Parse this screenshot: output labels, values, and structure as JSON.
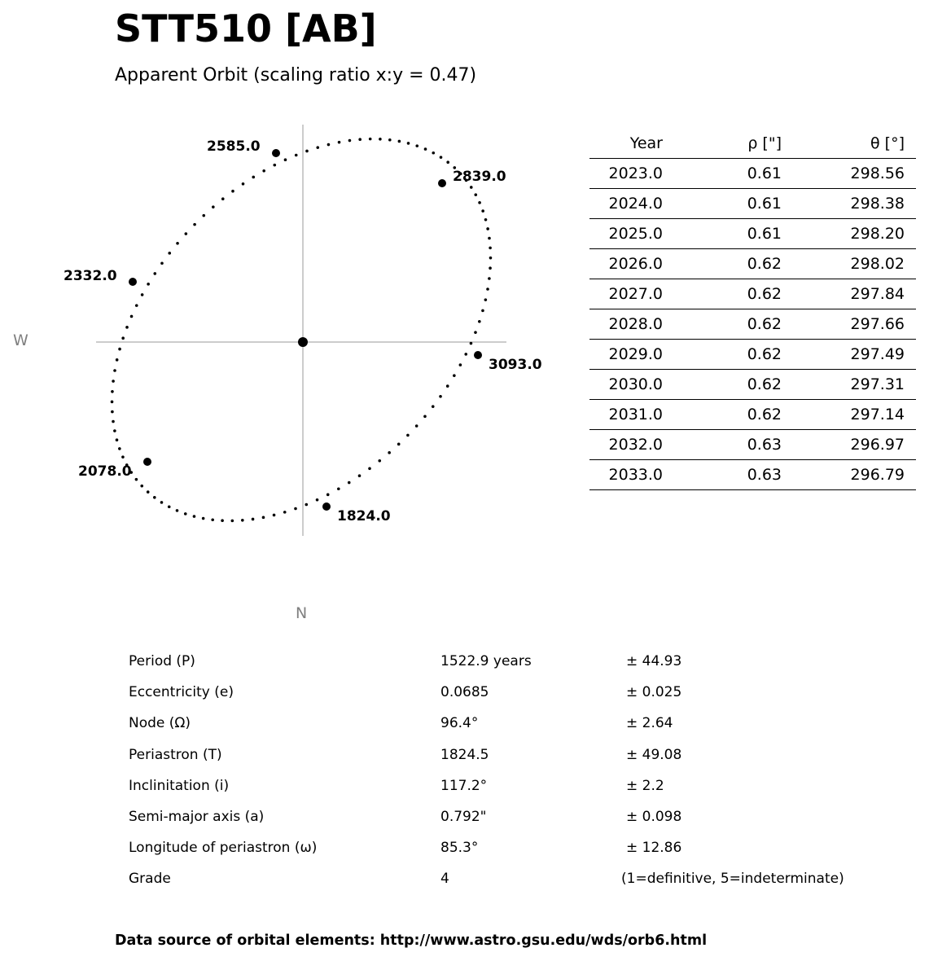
{
  "title": "STT510 [AB]",
  "subtitle": "Apparent Orbit (scaling ratio x:y = 0.47)",
  "directions": {
    "west": "W",
    "north": "N"
  },
  "chart_data": {
    "type": "scatter",
    "title": "Apparent Orbit (scaling ratio x:y = 0.47)",
    "grid": false,
    "axes_lines": "crosshair through primary star",
    "labeled_epochs": [
      "2585.0",
      "2839.0",
      "2332.0",
      "3093.0",
      "2078.0",
      "1824.0"
    ],
    "primary_marker": "filled circle at origin",
    "orbit_style": "dotted black ellipse"
  },
  "ephemeris": {
    "headers": [
      "Year",
      "ρ [\"]",
      "θ [°]"
    ],
    "rows": [
      [
        "2023.0",
        "0.61",
        "298.56"
      ],
      [
        "2024.0",
        "0.61",
        "298.38"
      ],
      [
        "2025.0",
        "0.61",
        "298.20"
      ],
      [
        "2026.0",
        "0.62",
        "298.02"
      ],
      [
        "2027.0",
        "0.62",
        "297.84"
      ],
      [
        "2028.0",
        "0.62",
        "297.66"
      ],
      [
        "2029.0",
        "0.62",
        "297.49"
      ],
      [
        "2030.0",
        "0.62",
        "297.31"
      ],
      [
        "2031.0",
        "0.62",
        "297.14"
      ],
      [
        "2032.0",
        "0.63",
        "296.97"
      ],
      [
        "2033.0",
        "0.63",
        "296.79"
      ]
    ]
  },
  "elements": [
    [
      "Period (P)",
      "1522.9 years",
      "± 44.93"
    ],
    [
      "Eccentricity (e)",
      "0.0685",
      "± 0.025"
    ],
    [
      "Node (Ω)",
      "96.4°",
      "± 2.64"
    ],
    [
      "Periastron (T)",
      "1824.5",
      "± 49.08"
    ],
    [
      "Inclinitation (i)",
      "117.2°",
      "± 2.2"
    ],
    [
      "Semi-major axis (a)",
      "0.792\"",
      "± 0.098"
    ],
    [
      "Longitude of periastron (ω)",
      "85.3°",
      "± 12.86"
    ],
    [
      "Grade",
      "4",
      "(1=definitive, 5=indeterminate)"
    ]
  ],
  "source": "Data source of orbital elements: http://www.astro.gsu.edu/wds/orb6.html"
}
